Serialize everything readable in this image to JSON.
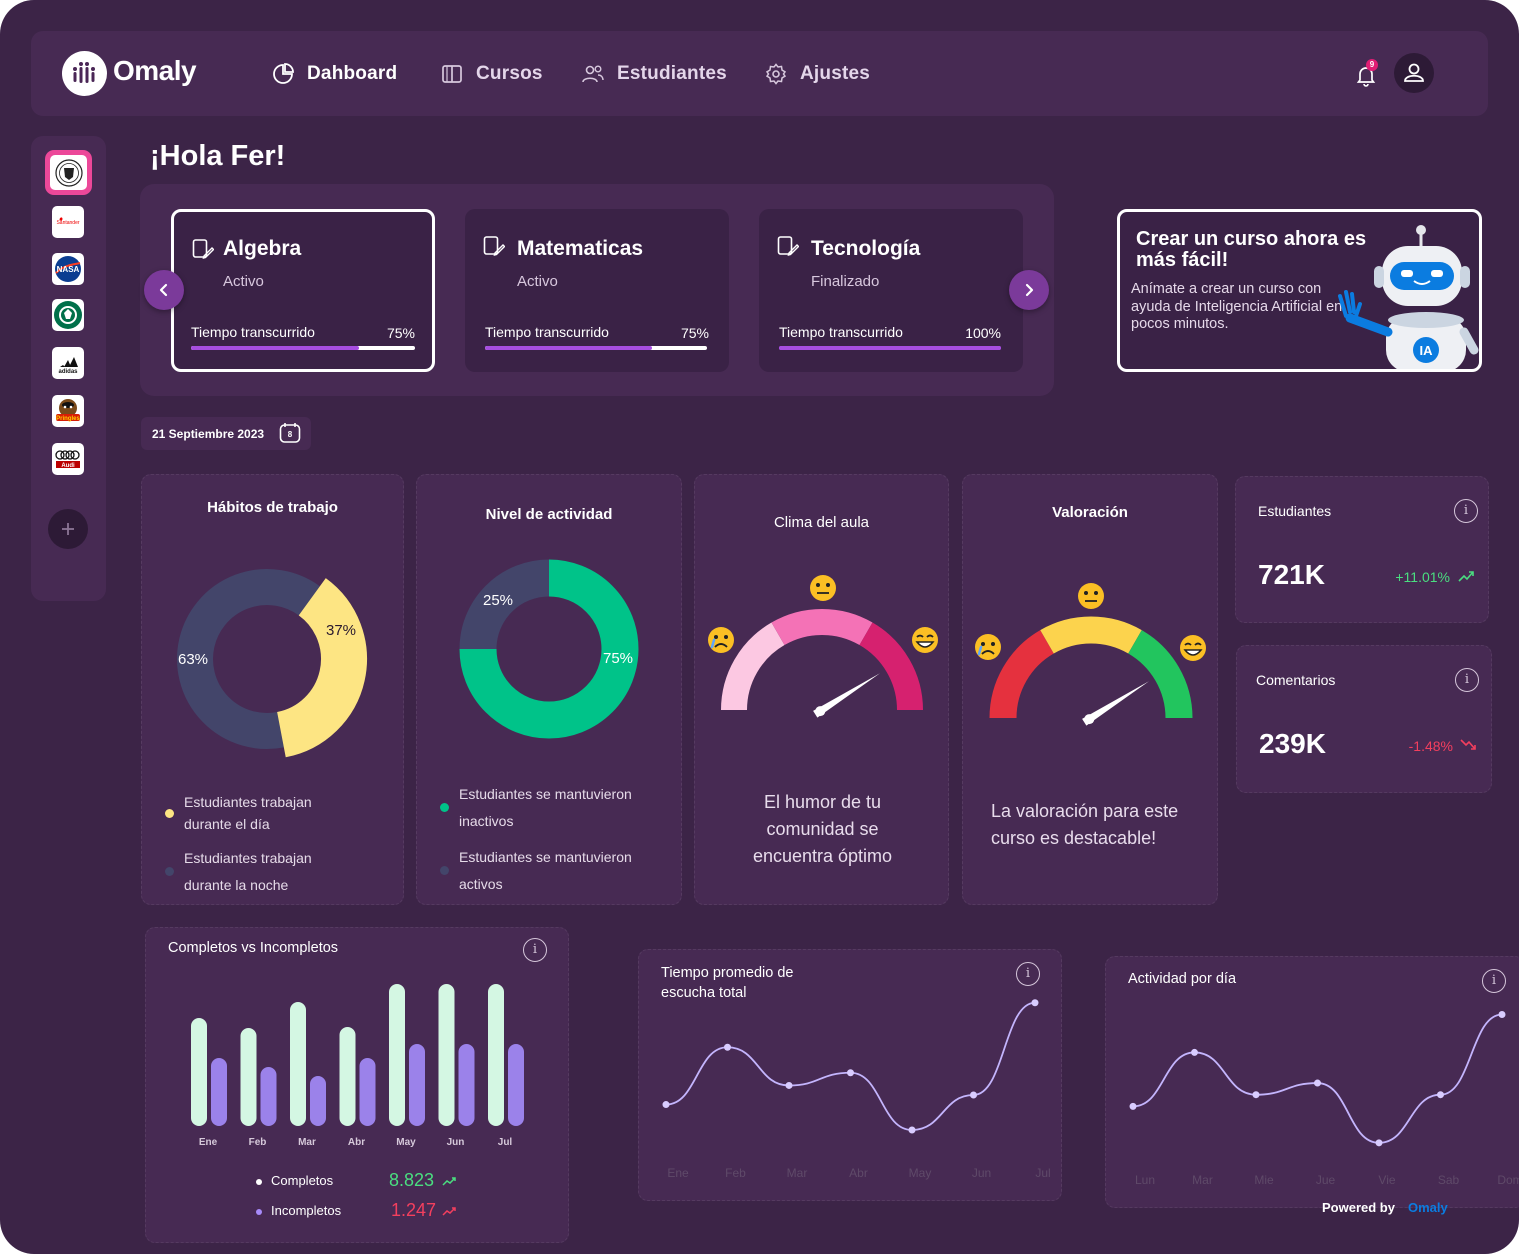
{
  "brand": {
    "name": "Omaly"
  },
  "nav": {
    "items": [
      {
        "label": "Dahboard",
        "icon": "pie-chart-icon"
      },
      {
        "label": "Cursos",
        "icon": "book-icon"
      },
      {
        "label": "Estudiantes",
        "icon": "users-icon"
      },
      {
        "label": "Ajustes",
        "icon": "gear-icon"
      }
    ],
    "notifications_count": "9"
  },
  "sidebar": {
    "logos": [
      "Seal",
      "Santander",
      "NASA",
      "Starbucks",
      "adidas",
      "Pringles",
      "Audi"
    ]
  },
  "greeting": "¡Hola Fer!",
  "courses": [
    {
      "title": "Algebra",
      "status": "Activo",
      "progress_label": "Tiempo transcurrido",
      "progress_text": "75%",
      "progress": 0.75
    },
    {
      "title": "Matematicas",
      "status": "Activo",
      "progress_label": "Tiempo transcurrido",
      "progress_text": "75%",
      "progress": 0.75
    },
    {
      "title": "Tecnología",
      "status": "Finalizado",
      "progress_label": "Tiempo transcurrido",
      "progress_text": "100%",
      "progress": 1.0
    }
  ],
  "promo": {
    "title": "Crear un curso ahora es más fácil!",
    "body": "Anímate a crear un curso con ayuda de Inteligencia Artificial en pocos minutos.",
    "badge": "IA"
  },
  "date": {
    "label": "21 Septiembre 2023",
    "day": "8"
  },
  "habitos": {
    "title": "Hábitos de trabajo",
    "slices": [
      {
        "label": "37%",
        "value": 37,
        "color": "#fde583"
      },
      {
        "label": "63%",
        "value": 63,
        "color": "#43456a"
      }
    ],
    "legend": [
      {
        "text": "Estudiantes trabajan durante el día",
        "color": "#fde583"
      },
      {
        "text": "Estudiantes trabajan durante la noche",
        "color": "#43456a"
      }
    ]
  },
  "actividad": {
    "title": "Nivel de actividad",
    "slices": [
      {
        "label": "75%",
        "value": 75,
        "color": "#00c389"
      },
      {
        "label": "25%",
        "value": 25,
        "color": "#43456a"
      }
    ],
    "legend": [
      {
        "text": "Estudiantes se mantuvieron inactivos",
        "color": "#00c389"
      },
      {
        "text": "Estudiantes se mantuvieron activos",
        "color": "#43456a"
      }
    ]
  },
  "clima": {
    "title": "Clima del aula",
    "text": "El humor de tu comunidad se encuentra óptimo",
    "colors": [
      "#fcc8e2",
      "#f472b6",
      "#d6216f"
    ],
    "level": 0.82
  },
  "valoracion": {
    "title": "Valoración",
    "text": "La valoración para este curso es destacable!",
    "colors": [
      "#e5313e",
      "#fcd34d",
      "#22c55e"
    ],
    "level": 0.82
  },
  "stats": [
    {
      "title": "Estudiantes",
      "value": "721K",
      "delta": "+11.01%",
      "color": "#4ade80"
    },
    {
      "title": "Comentarios",
      "value": "239K",
      "delta": "-1.48%",
      "color": "#f43f5e"
    }
  ],
  "chart_data": [
    {
      "type": "bar",
      "title": "Completos vs Incompletos",
      "categories": [
        "Ene",
        "Feb",
        "Mar",
        "Abr",
        "May",
        "Jun",
        "Jul"
      ],
      "series": [
        {
          "name": "Completos",
          "values": [
            108,
            98,
            124,
            99,
            142,
            142,
            142
          ],
          "color": "#d4f7e3"
        },
        {
          "name": "Incompletos",
          "values": [
            68,
            59,
            50,
            68,
            82,
            82,
            82
          ],
          "color": "#9b82ea"
        }
      ],
      "ylim": [
        0,
        150
      ],
      "totals": [
        {
          "name": "Completos",
          "value": "8.823",
          "color": "#4ade80"
        },
        {
          "name": "Incompletos",
          "value": "1.247",
          "color": "#f43f5e"
        }
      ]
    },
    {
      "type": "line",
      "title": "Tiempo promedio de escucha total",
      "categories": [
        "Ene",
        "Feb",
        "Mar",
        "Abr",
        "May",
        "Jun",
        "Jul"
      ],
      "values": [
        38,
        74,
        50,
        58,
        22,
        44,
        102
      ],
      "ylim": [
        0,
        110
      ]
    },
    {
      "type": "line",
      "title": "Actividad por día",
      "categories": [
        "Lun",
        "Mar",
        "Mie",
        "Jue",
        "Vie",
        "Sab",
        "Dom"
      ],
      "values": [
        45,
        82,
        53,
        61,
        20,
        53,
        108
      ],
      "ylim": [
        0,
        120
      ]
    }
  ],
  "footer": {
    "powered": "Powered by",
    "brand": "Omaly"
  }
}
